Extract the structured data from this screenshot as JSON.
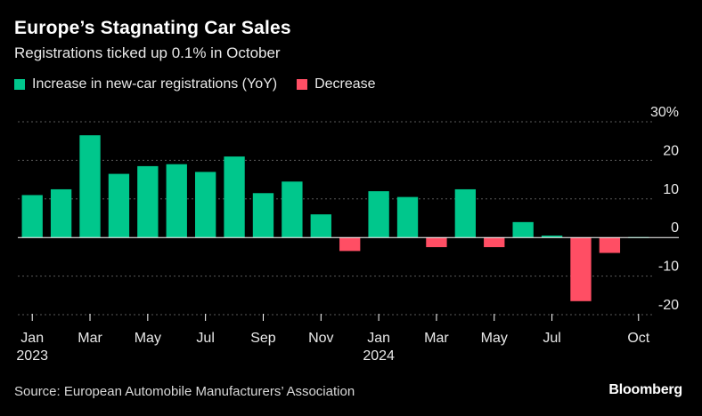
{
  "header": {
    "title": "Europe’s Stagnating Car Sales",
    "subtitle": "Registrations ticked up 0.1% in October"
  },
  "legend": {
    "increase_label": "Increase in new-car registrations (YoY)",
    "decrease_label": "Decrease"
  },
  "footer": {
    "source": "Source: European Automobile Manufacturers’ Association",
    "logo": "Bloomberg"
  },
  "colors": {
    "increase": "#00c78c",
    "decrease": "#ff4e64",
    "grid": "#5a5a5a",
    "axis": "#ffffff",
    "text": "#e8e8e8"
  },
  "chart_data": {
    "type": "bar",
    "title": "Europe’s Stagnating Car Sales",
    "subtitle": "Registrations ticked up 0.1% in October",
    "xlabel": "",
    "ylabel": "Increase in new-car registrations (YoY)",
    "ylim": [
      -20,
      30
    ],
    "yticks": [
      30,
      20,
      10,
      0,
      -10,
      -20
    ],
    "ytick_labels": [
      "30%",
      "20",
      "10",
      "0",
      "-10",
      "-20"
    ],
    "grid": true,
    "categories": [
      "Jan 2023",
      "Feb 2023",
      "Mar 2023",
      "Apr 2023",
      "May 2023",
      "Jun 2023",
      "Jul 2023",
      "Aug 2023",
      "Sep 2023",
      "Oct 2023",
      "Nov 2023",
      "Dec 2023",
      "Jan 2024",
      "Feb 2024",
      "Mar 2024",
      "Apr 2024",
      "May 2024",
      "Jun 2024",
      "Jul 2024",
      "Aug 2024",
      "Sep 2024",
      "Oct 2024"
    ],
    "values": [
      11.0,
      12.5,
      26.5,
      16.5,
      18.5,
      19.0,
      17.0,
      21.0,
      11.5,
      14.5,
      6.0,
      -3.5,
      12.0,
      10.5,
      -2.5,
      12.5,
      -2.5,
      4.0,
      0.5,
      -16.5,
      -4.0,
      0.1
    ],
    "x_tick_labels": [
      {
        "index": 0,
        "label": "Jan",
        "year": "2023"
      },
      {
        "index": 2,
        "label": "Mar",
        "year": ""
      },
      {
        "index": 4,
        "label": "May",
        "year": ""
      },
      {
        "index": 6,
        "label": "Jul",
        "year": ""
      },
      {
        "index": 8,
        "label": "Sep",
        "year": ""
      },
      {
        "index": 10,
        "label": "Nov",
        "year": ""
      },
      {
        "index": 12,
        "label": "Jan",
        "year": "2024"
      },
      {
        "index": 14,
        "label": "Mar",
        "year": ""
      },
      {
        "index": 16,
        "label": "May",
        "year": ""
      },
      {
        "index": 18,
        "label": "Jul",
        "year": ""
      },
      {
        "index": 21,
        "label": "Oct",
        "year": ""
      }
    ]
  }
}
